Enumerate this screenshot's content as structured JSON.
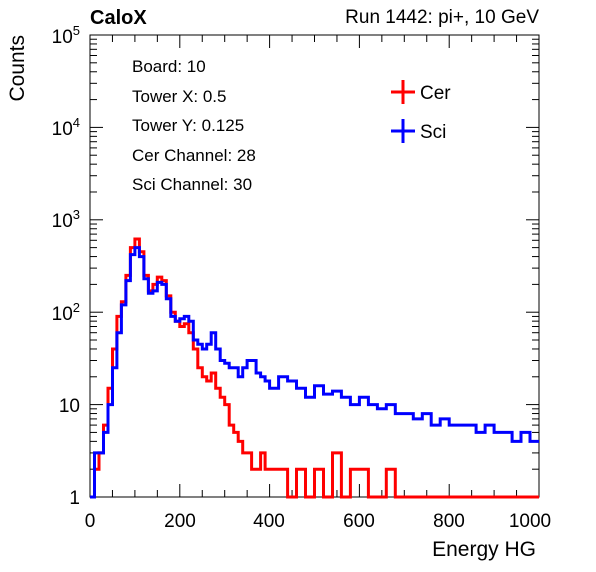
{
  "header": {
    "left": "CaloX",
    "right": "Run 1442: pi+, 10 GeV"
  },
  "info": {
    "board": "Board: 10",
    "tower_x": "Tower X: 0.5",
    "tower_y": "Tower Y: 0.125",
    "cer_channel": "Cer Channel: 28",
    "sci_channel": "Sci Channel: 30"
  },
  "colors": {
    "cer": "#ff0000",
    "sci": "#0000ff"
  },
  "chart_data": {
    "type": "line",
    "title": "",
    "xlabel": "Energy HG",
    "ylabel": "Counts",
    "xlim": [
      0,
      1000
    ],
    "ylim": [
      1,
      100000
    ],
    "yscale": "log",
    "grid": false,
    "legend": "top-right",
    "x_ticks": [
      "0",
      "200",
      "400",
      "600",
      "800",
      "1000"
    ],
    "y_ticks": [
      "1",
      "10",
      "10^2",
      "10^3",
      "10^4",
      "10^5"
    ],
    "x": [
      10,
      20,
      30,
      40,
      50,
      60,
      70,
      80,
      90,
      100,
      110,
      120,
      130,
      140,
      150,
      160,
      170,
      180,
      190,
      200,
      210,
      220,
      230,
      240,
      250,
      260,
      270,
      280,
      290,
      300,
      310,
      320,
      330,
      340,
      350,
      360,
      370,
      380,
      390,
      400,
      420,
      440,
      460,
      480,
      500,
      520,
      540,
      560,
      580,
      600,
      620,
      640,
      660,
      680,
      700,
      720,
      740,
      760,
      780,
      800,
      820,
      840,
      860,
      880,
      900,
      920,
      940,
      960,
      980,
      1000
    ],
    "series": [
      {
        "name": "Cer",
        "values": [
          1,
          2,
          3,
          6,
          15,
          40,
          90,
          130,
          250,
          500,
          620,
          450,
          250,
          170,
          200,
          240,
          220,
          150,
          100,
          80,
          70,
          75,
          60,
          40,
          25,
          20,
          18,
          22,
          15,
          12,
          10,
          6,
          5,
          4,
          3,
          3,
          2,
          2,
          3,
          2,
          2,
          2,
          1,
          2,
          1,
          2,
          1,
          3,
          1,
          2,
          2,
          1,
          1,
          2,
          1,
          1,
          1,
          1,
          1,
          1,
          1,
          1,
          1,
          1,
          1,
          1,
          1,
          1,
          1,
          1
        ]
      },
      {
        "name": "Sci",
        "values": [
          1,
          3,
          3,
          5,
          10,
          25,
          60,
          120,
          220,
          420,
          500,
          400,
          230,
          160,
          170,
          210,
          200,
          140,
          90,
          80,
          85,
          90,
          80,
          50,
          45,
          40,
          45,
          60,
          40,
          30,
          28,
          25,
          25,
          20,
          25,
          30,
          30,
          22,
          20,
          18,
          15,
          20,
          18,
          15,
          12,
          16,
          13,
          14,
          12,
          10,
          12,
          10,
          9,
          10,
          8,
          8,
          7,
          8,
          6,
          7,
          6,
          6,
          6,
          5,
          6,
          5,
          5,
          4,
          5,
          4
        ]
      }
    ]
  }
}
